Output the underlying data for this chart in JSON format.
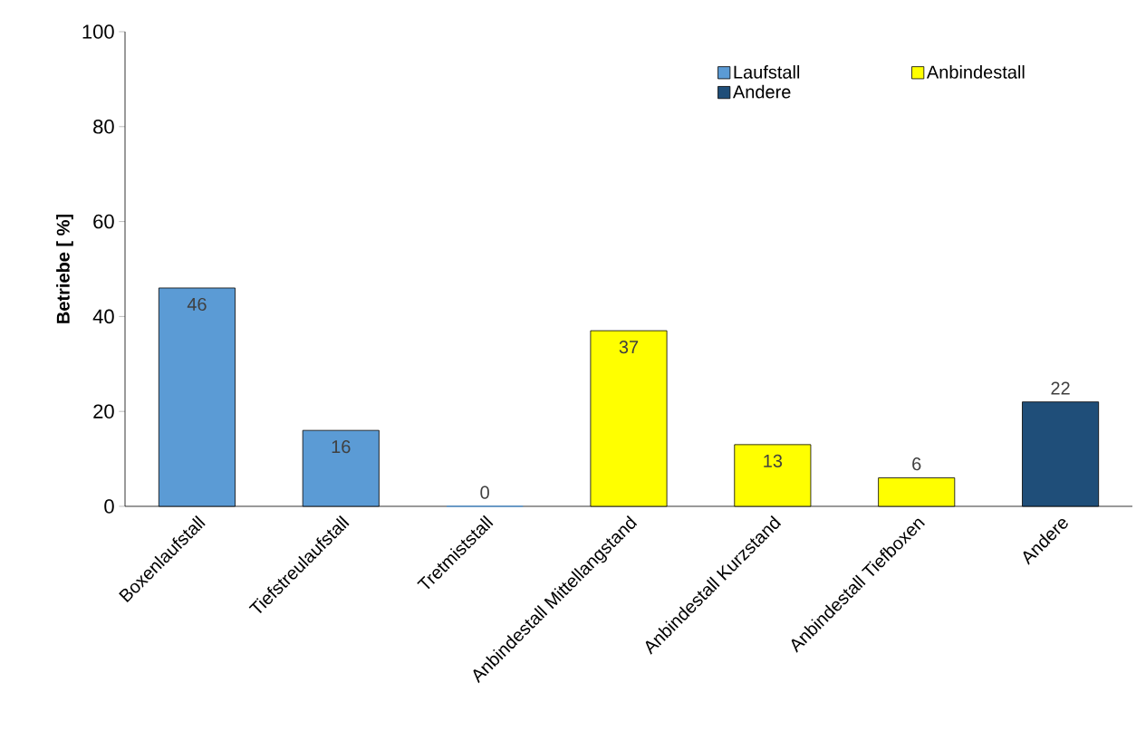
{
  "chart_data": {
    "type": "bar",
    "ylabel": "Betriebe [ %]",
    "categories": [
      "Boxenlaufstall",
      "Tiefstreulaufstall",
      "Tretmiststall",
      "Anbindestall Mittellangstand",
      "Anbindestall Kurzstand",
      "Anbindestall Tiefboxen",
      "Andere"
    ],
    "series": [
      {
        "name": "Laufstall",
        "color": "#5b9bd5",
        "values": [
          46,
          16,
          0,
          null,
          null,
          null,
          null
        ]
      },
      {
        "name": "Anbindestall",
        "color": "#ffff00",
        "values": [
          null,
          null,
          null,
          37,
          13,
          6,
          null
        ]
      },
      {
        "name": "Andere",
        "color": "#1f4e79",
        "values": [
          null,
          null,
          null,
          null,
          null,
          null,
          22
        ]
      }
    ],
    "ylim": [
      0,
      100
    ],
    "yticks": [
      0,
      20,
      40,
      60,
      80,
      100
    ],
    "data_labels": true,
    "legend": "top right"
  }
}
